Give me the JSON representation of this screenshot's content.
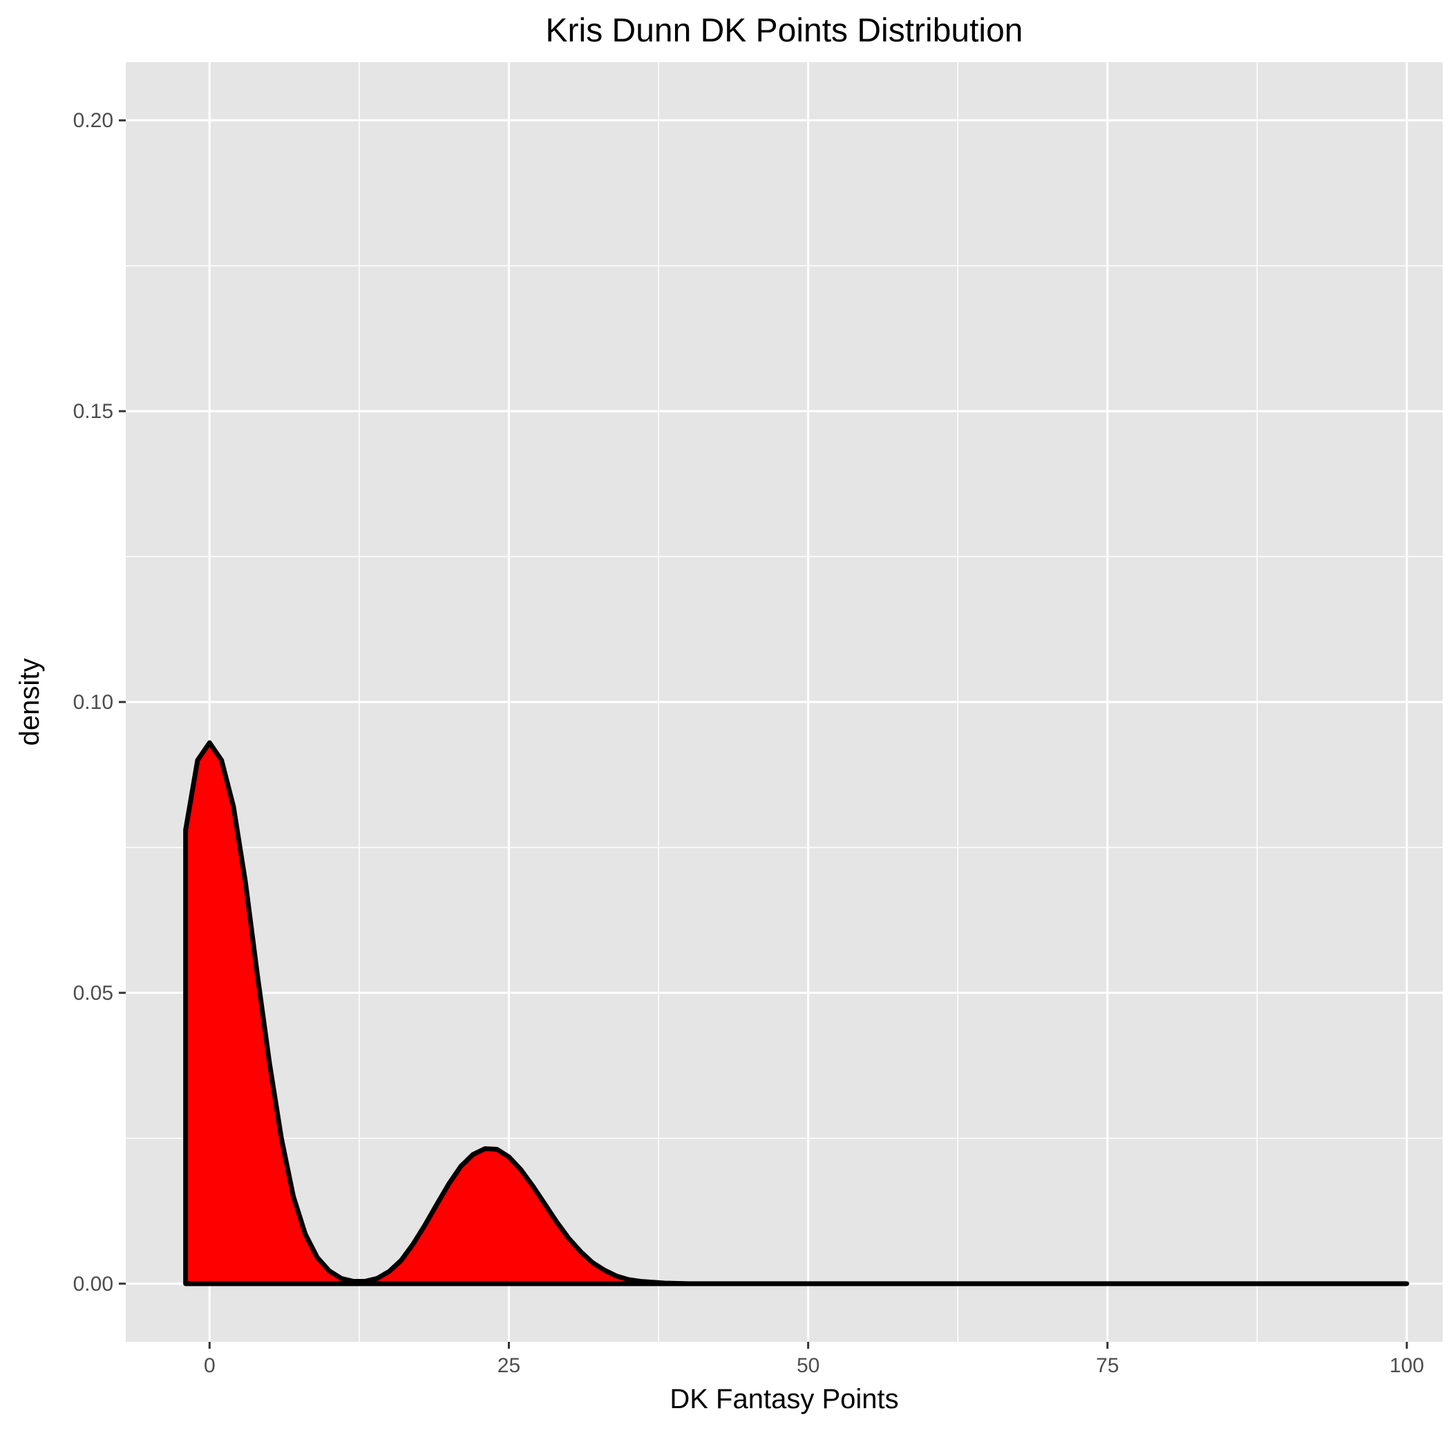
{
  "chart_data": {
    "type": "area",
    "title": "Kris Dunn DK Points Distribution",
    "xlabel": "DK Fantasy Points",
    "ylabel": "density",
    "xlim": [
      -7,
      103
    ],
    "ylim": [
      -0.01,
      0.21
    ],
    "x_ticks": [
      0,
      25,
      50,
      75,
      100
    ],
    "x_tick_labels": [
      "0",
      "25",
      "50",
      "75",
      "100"
    ],
    "y_ticks": [
      0,
      0.05,
      0.1,
      0.15,
      0.2
    ],
    "y_tick_labels": [
      "0.00",
      "0.05",
      "0.10",
      "0.15",
      "0.20"
    ],
    "x_minor_ticks": [
      12.5,
      37.5,
      62.5,
      87.5
    ],
    "y_minor_ticks": [
      0.025,
      0.075,
      0.125,
      0.175
    ],
    "grid": true,
    "legend": "none",
    "series": [
      {
        "x": [
          -2,
          -1,
          0,
          1,
          2,
          3,
          4,
          5,
          6,
          7,
          8,
          9,
          10,
          11,
          12,
          13,
          14,
          15,
          16,
          17,
          18,
          19,
          20,
          21,
          22,
          23,
          24,
          25,
          26,
          27,
          28,
          29,
          30,
          31,
          32,
          33,
          34,
          35,
          36,
          38,
          40,
          100
        ],
        "y": [
          0.078,
          0.09,
          0.093,
          0.09,
          0.082,
          0.069,
          0.053,
          0.038,
          0.025,
          0.015,
          0.0085,
          0.0045,
          0.0022,
          0.0009,
          0.0004,
          0.0004,
          0.0009,
          0.0021,
          0.004,
          0.0068,
          0.0101,
          0.0137,
          0.0172,
          0.0202,
          0.0222,
          0.0232,
          0.0231,
          0.0218,
          0.0196,
          0.0168,
          0.0137,
          0.0106,
          0.0078,
          0.0055,
          0.0036,
          0.0023,
          0.0013,
          0.0007,
          0.0004,
          0.0001,
          0.0,
          0.0
        ]
      }
    ],
    "colors": {
      "fill": "#ff0000",
      "line": "#000000",
      "panel": "#e5e5e5",
      "grid": "#ffffff"
    }
  }
}
